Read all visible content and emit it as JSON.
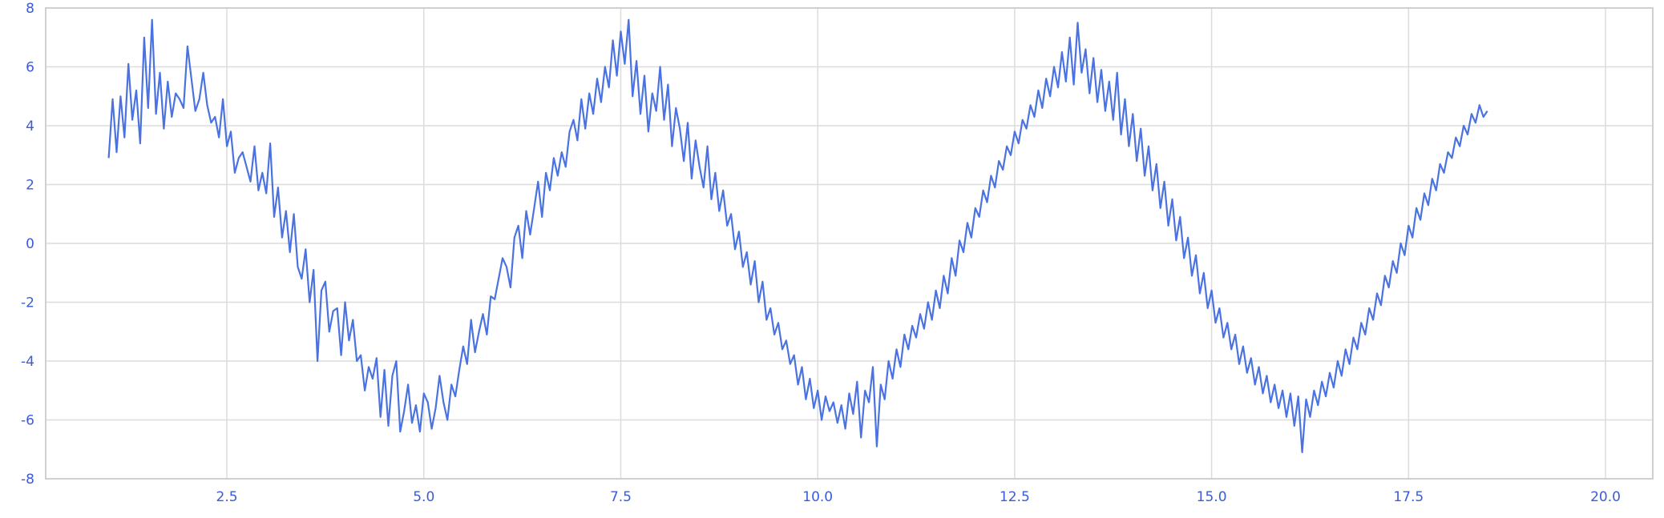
{
  "chart_data": {
    "type": "line",
    "title": "",
    "xlabel": "",
    "ylabel": "",
    "xlim": [
      0.2,
      20.6
    ],
    "ylim": [
      -8,
      8
    ],
    "xticks": [
      "2.5",
      "5.0",
      "7.5",
      "10.0",
      "12.5",
      "15.0",
      "17.5",
      "20.0"
    ],
    "xtick_values": [
      2.5,
      5.0,
      7.5,
      10.0,
      12.5,
      15.0,
      17.5,
      20.0
    ],
    "yticks": [
      "-8",
      "-6",
      "-4",
      "-2",
      "0",
      "2",
      "4",
      "6",
      "8"
    ],
    "ytick_values": [
      -8,
      -6,
      -4,
      -2,
      0,
      2,
      4,
      6,
      8
    ],
    "grid": true,
    "legend": "none",
    "series": [
      {
        "color": "#4a72e0",
        "x_start": 1.0,
        "x_step": 0.05,
        "values": [
          2.9,
          4.9,
          3.1,
          5.0,
          3.6,
          6.1,
          4.2,
          5.2,
          3.4,
          7.0,
          4.6,
          7.6,
          4.4,
          5.8,
          3.9,
          5.5,
          4.3,
          5.1,
          4.9,
          4.6,
          6.7,
          5.6,
          4.5,
          4.9,
          5.8,
          4.7,
          4.1,
          4.3,
          3.6,
          4.9,
          3.3,
          3.8,
          2.4,
          2.9,
          3.1,
          2.6,
          2.1,
          3.3,
          1.8,
          2.4,
          1.7,
          3.4,
          0.9,
          1.9,
          0.2,
          1.1,
          -0.3,
          1.0,
          -0.8,
          -1.2,
          -0.2,
          -2.0,
          -0.9,
          -4.0,
          -1.6,
          -1.3,
          -3.0,
          -2.3,
          -2.2,
          -3.8,
          -2.0,
          -3.3,
          -2.6,
          -4.0,
          -3.8,
          -5.0,
          -4.2,
          -4.6,
          -3.9,
          -5.9,
          -4.3,
          -6.2,
          -4.5,
          -4.0,
          -6.4,
          -5.7,
          -4.8,
          -6.1,
          -5.5,
          -6.4,
          -5.1,
          -5.4,
          -6.3,
          -5.6,
          -4.5,
          -5.4,
          -6.0,
          -4.8,
          -5.2,
          -4.3,
          -3.5,
          -4.1,
          -2.6,
          -3.7,
          -3.0,
          -2.4,
          -3.1,
          -1.8,
          -1.9,
          -1.2,
          -0.5,
          -0.8,
          -1.5,
          0.2,
          0.6,
          -0.5,
          1.1,
          0.3,
          1.2,
          2.1,
          0.9,
          2.4,
          1.8,
          2.9,
          2.3,
          3.1,
          2.6,
          3.8,
          4.2,
          3.5,
          4.9,
          3.9,
          5.1,
          4.4,
          5.6,
          4.8,
          6.0,
          5.3,
          6.9,
          5.7,
          7.2,
          6.1,
          7.6,
          5.0,
          6.2,
          4.4,
          5.7,
          3.8,
          5.1,
          4.5,
          6.0,
          4.2,
          5.4,
          3.3,
          4.6,
          3.9,
          2.8,
          4.1,
          2.2,
          3.5,
          2.6,
          1.9,
          3.3,
          1.5,
          2.4,
          1.1,
          1.8,
          0.6,
          1.0,
          -0.2,
          0.4,
          -0.8,
          -0.3,
          -1.4,
          -0.6,
          -2.0,
          -1.3,
          -2.6,
          -2.2,
          -3.1,
          -2.7,
          -3.6,
          -3.3,
          -4.1,
          -3.8,
          -4.8,
          -4.2,
          -5.3,
          -4.6,
          -5.6,
          -5.0,
          -6.0,
          -5.2,
          -5.7,
          -5.4,
          -6.1,
          -5.5,
          -6.3,
          -5.1,
          -5.8,
          -4.7,
          -6.6,
          -5.0,
          -5.4,
          -4.2,
          -6.9,
          -4.8,
          -5.3,
          -4.0,
          -4.6,
          -3.6,
          -4.2,
          -3.1,
          -3.6,
          -2.8,
          -3.2,
          -2.4,
          -2.9,
          -2.0,
          -2.6,
          -1.6,
          -2.2,
          -1.1,
          -1.7,
          -0.5,
          -1.1,
          0.1,
          -0.3,
          0.7,
          0.2,
          1.2,
          0.9,
          1.8,
          1.4,
          2.3,
          1.9,
          2.8,
          2.5,
          3.3,
          3.0,
          3.8,
          3.4,
          4.2,
          3.9,
          4.7,
          4.3,
          5.2,
          4.6,
          5.6,
          5.0,
          6.0,
          5.3,
          6.5,
          5.5,
          7.0,
          5.4,
          7.5,
          5.8,
          6.6,
          5.1,
          6.3,
          4.8,
          5.9,
          4.5,
          5.5,
          4.2,
          5.8,
          3.7,
          4.9,
          3.3,
          4.4,
          2.8,
          3.9,
          2.3,
          3.3,
          1.8,
          2.7,
          1.2,
          2.1,
          0.6,
          1.5,
          0.1,
          0.9,
          -0.5,
          0.2,
          -1.1,
          -0.4,
          -1.7,
          -1.0,
          -2.2,
          -1.6,
          -2.7,
          -2.2,
          -3.2,
          -2.7,
          -3.6,
          -3.1,
          -4.1,
          -3.5,
          -4.4,
          -3.9,
          -4.8,
          -4.2,
          -5.1,
          -4.5,
          -5.4,
          -4.8,
          -5.6,
          -5.0,
          -5.9,
          -5.1,
          -6.2,
          -5.2,
          -7.1,
          -5.3,
          -5.9,
          -5.0,
          -5.5,
          -4.7,
          -5.2,
          -4.4,
          -4.9,
          -4.0,
          -4.5,
          -3.6,
          -4.1,
          -3.2,
          -3.6,
          -2.7,
          -3.1,
          -2.2,
          -2.6,
          -1.7,
          -2.1,
          -1.1,
          -1.5,
          -0.6,
          -1.0,
          0.0,
          -0.4,
          0.6,
          0.2,
          1.2,
          0.8,
          1.7,
          1.3,
          2.2,
          1.8,
          2.7,
          2.4,
          3.1,
          2.9,
          3.6,
          3.3,
          4.0,
          3.7,
          4.4,
          4.1,
          4.7,
          4.3,
          4.5
        ]
      }
    ]
  }
}
